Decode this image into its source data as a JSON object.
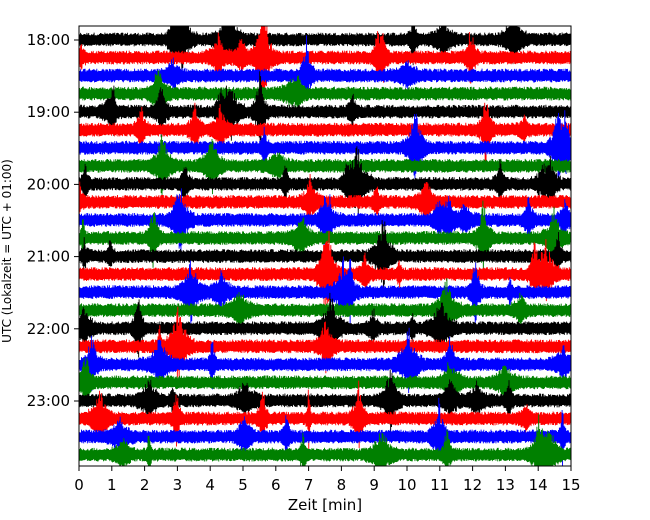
{
  "chart_data": {
    "type": "line",
    "title": "",
    "xlabel": "Zeit  [min]",
    "ylabel": "UTC (Lokalzeit = UTC + 01:00)",
    "xlim": [
      0,
      15
    ],
    "x_ticks": [
      "0",
      "1",
      "2",
      "3",
      "4",
      "5",
      "6",
      "7",
      "8",
      "9",
      "10",
      "11",
      "12",
      "13",
      "14",
      "15"
    ],
    "y_ticks": [
      "18:00",
      "19:00",
      "20:00",
      "21:00",
      "22:00",
      "23:00"
    ],
    "trace_interval_min": 15,
    "trace_start": "18:00",
    "trace_end": "23:45",
    "trace_count": 24,
    "colors": [
      "#000000",
      "#ff0000",
      "#0000ff",
      "#008000"
    ],
    "grid": false,
    "legend": "none"
  }
}
